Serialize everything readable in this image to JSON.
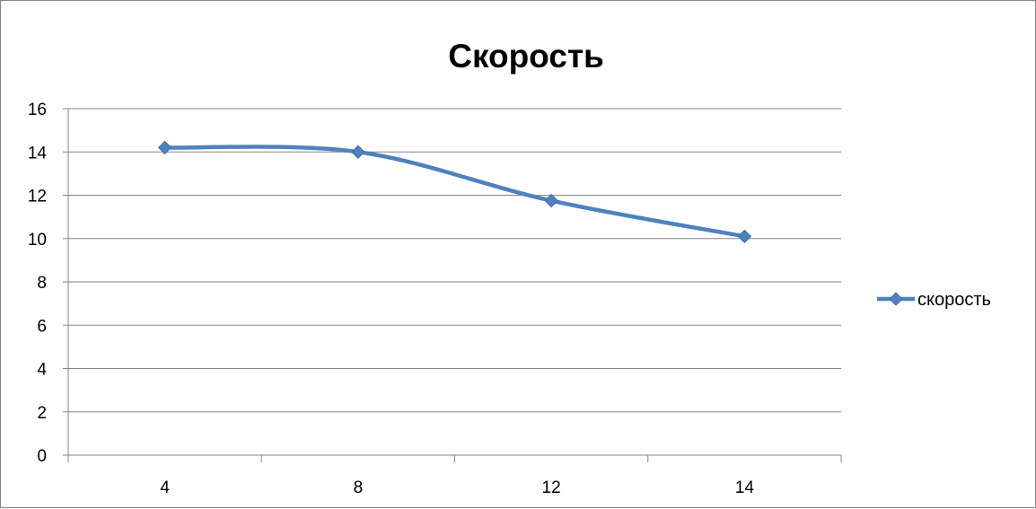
{
  "chart_data": {
    "type": "line",
    "title": "Скорость",
    "xlabel": "",
    "ylabel": "",
    "categories": [
      "4",
      "8",
      "12",
      "14"
    ],
    "series": [
      {
        "name": "скорость",
        "values": [
          14.2,
          14.0,
          11.75,
          10.1
        ],
        "color": "#4F81BD",
        "marker": "diamond",
        "smooth": true
      }
    ],
    "ylim": [
      0,
      16
    ],
    "yticks": [
      0,
      2,
      4,
      6,
      8,
      10,
      12,
      14,
      16
    ],
    "grid": true,
    "legend_position": "right"
  }
}
